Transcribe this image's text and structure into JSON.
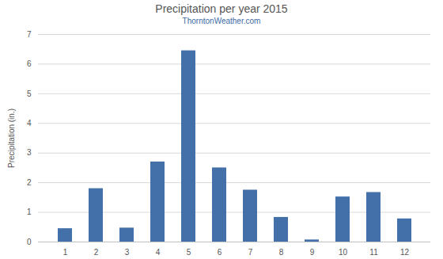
{
  "chart_data": {
    "type": "bar",
    "title": "Precipitation per year 2015",
    "subtitle": "ThorntonWeather.com",
    "y_label": "Precipitation (in.)",
    "categories": [
      "1",
      "2",
      "3",
      "4",
      "5",
      "6",
      "7",
      "8",
      "9",
      "10",
      "11",
      "12"
    ],
    "values": [
      0.45,
      1.8,
      0.47,
      2.7,
      6.45,
      2.5,
      1.75,
      0.83,
      0.07,
      1.52,
      1.67,
      0.78
    ],
    "color": "#4470aa",
    "ylim": [
      0,
      7
    ],
    "yticks": [
      0,
      1,
      2,
      3,
      4,
      5,
      6,
      7
    ],
    "grid": true
  }
}
